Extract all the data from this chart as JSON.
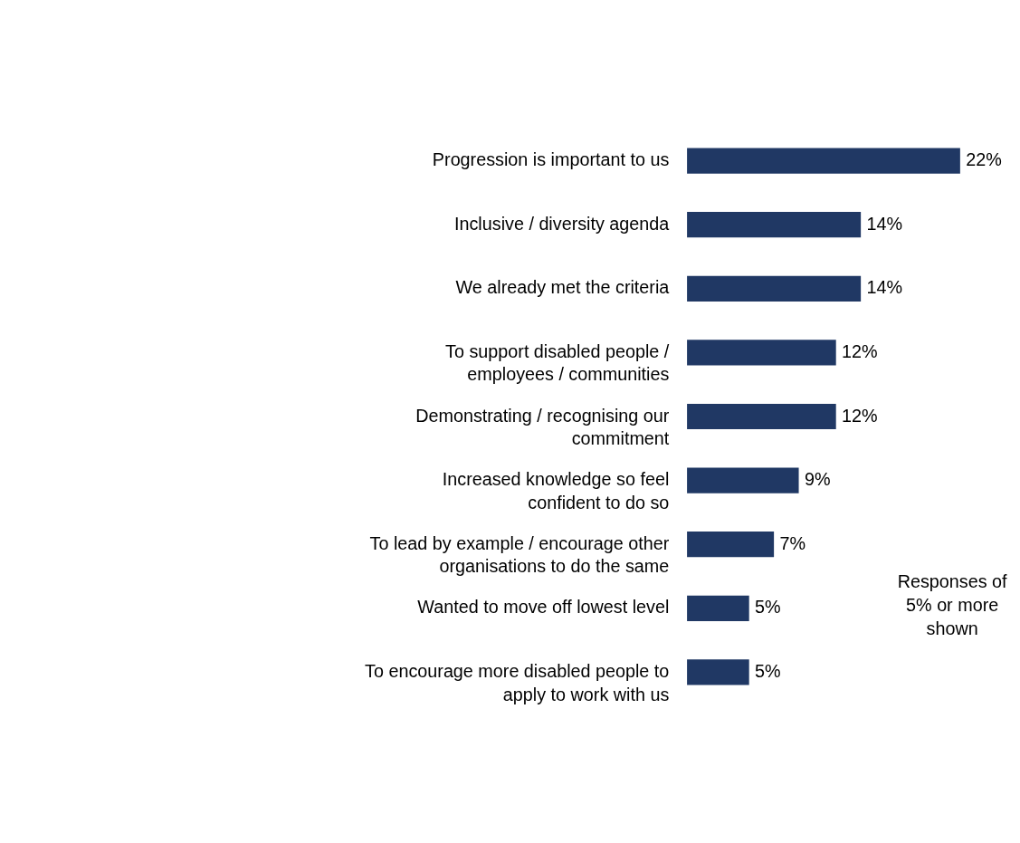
{
  "chart_data": {
    "type": "bar",
    "orientation": "horizontal",
    "categories": [
      "Progression is important to us",
      "Inclusive / diversity agenda",
      "We already met the criteria",
      "To support disabled people / employees / communities",
      "Demonstrating / recognising our commitment",
      "Increased knowledge so feel confident to do so",
      "To lead by example / encourage other organisations to do the same",
      "Wanted to move off lowest level",
      "To encourage more disabled people to apply to work with us"
    ],
    "values": [
      22,
      14,
      14,
      12,
      12,
      9,
      7,
      5,
      5
    ],
    "value_labels": [
      "22%",
      "14%",
      "14%",
      "12%",
      "12%",
      "9%",
      "7%",
      "5%",
      "5%"
    ],
    "color": "#203864",
    "annotations": [
      "Responses of 5% or more shown"
    ]
  }
}
